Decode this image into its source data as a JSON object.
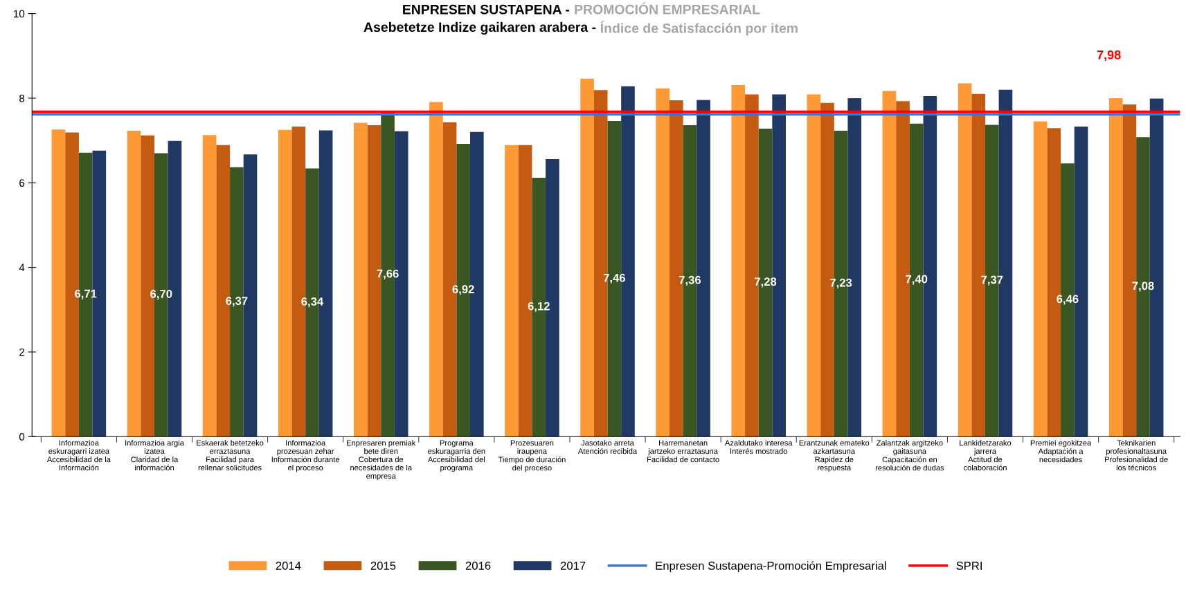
{
  "chart_data": {
    "type": "bar",
    "title": "ENPRESEN SUSTAPENA - PROMOCIÓN EMPRESARIAL",
    "subtitle": "Asebetetze Indize gaikaren arabera - Índice de Satisfacción por item",
    "categories": [
      "Informazioa\neskuragarri izatea\nAccesibilidad de la\nInformación",
      "Informazioa argia\nizatea\nClaridad de la\ninformación",
      "Eskaerak betetzeko\nerraztasuna\nFacilidad para\nrellenar solicitudes",
      "Informazioa\nprozesuan zehar\nInformación durante\nel proceso",
      "Enpresaren premiak\nbete diren\nCobertura de\nnecesidades de la\nempresa",
      "Programa\neskuragarria den\nAccesibilidad del\nprograma",
      "Prozesuaren\niraupena\nTiempo de duración\ndel proceso",
      "Jasotako arreta\nAtención recibida",
      "Harremanetan\njartzeko erraztasuna\nFacilidad de contacto",
      "Azaldutako interesa\nInterés mostrado",
      "Erantzunak emateko\nazkartasuna\nRapidez de\nrespuesta",
      "Zalantzak argitzeko\ngaitasuna\nCapacitación en\nresolución de dudas",
      "Lankidetzarako\njarrera\nActitud de\ncolaboración",
      "Premiei egokitzea\nAdaptación a\nnecesidades",
      "Teknikarien\nprofesionaltasuna\nProfesionalidad de\nlos técnicos"
    ],
    "series": [
      {
        "name": "2014",
        "color": "#fd9a36",
        "values": [
          7.26,
          7.23,
          7.13,
          7.25,
          7.42,
          7.91,
          6.89,
          8.46,
          8.23,
          8.31,
          8.09,
          8.17,
          8.35,
          7.45,
          8.0
        ]
      },
      {
        "name": "2015",
        "color": "#c55a11",
        "values": [
          7.19,
          7.12,
          6.89,
          7.33,
          7.36,
          7.43,
          6.89,
          8.19,
          7.95,
          8.09,
          7.89,
          7.93,
          8.1,
          7.29,
          7.85
        ]
      },
      {
        "name": "2016",
        "color": "#3a5723",
        "values": [
          6.71,
          6.7,
          6.37,
          6.34,
          7.66,
          6.92,
          6.12,
          7.46,
          7.36,
          7.28,
          7.23,
          7.4,
          7.37,
          6.46,
          7.08
        ],
        "value_labels": [
          "6,71",
          "6,70",
          "6,37",
          "6,34",
          "7,66",
          "6,92",
          "6,12",
          "7,46",
          "7,36",
          "7,28",
          "7,23",
          "7,40",
          "7,37",
          "6,46",
          "7,08"
        ]
      },
      {
        "name": "2017",
        "color": "#1f3864",
        "values": [
          6.76,
          6.99,
          6.67,
          7.24,
          7.22,
          7.2,
          6.56,
          8.28,
          7.96,
          8.09,
          8.0,
          8.05,
          8.2,
          7.33,
          7.99
        ]
      }
    ],
    "ref_lines": [
      {
        "axis": "y",
        "value": 7.62,
        "label": "Enpresen Sustapena-Promoción Empresarial",
        "color": "#4472c4"
      },
      {
        "axis": "y",
        "value": 7.68,
        "label": "SPRI",
        "color": "#ff0000"
      }
    ],
    "annotations": [
      "7,98"
    ],
    "ylim": [
      0,
      10
    ],
    "yticks": [
      0,
      2,
      4,
      6,
      8,
      10
    ],
    "grid": false,
    "legend": "bottom"
  }
}
